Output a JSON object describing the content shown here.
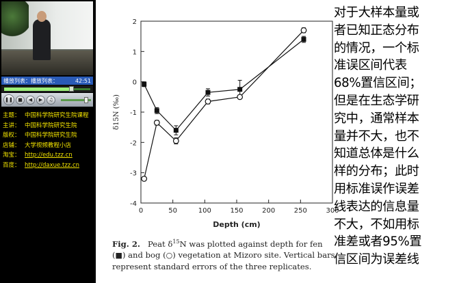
{
  "player": {
    "playlist_label": "播放列表：播放列表：",
    "time": "42:51",
    "progress": 0.78,
    "volume": 0.85,
    "icons": {
      "pause": "pause-icon",
      "stop": "stop-icon",
      "prev": "prev-icon",
      "next": "next-icon",
      "mute": "speaker-icon"
    }
  },
  "info": [
    {
      "key": "主题：",
      "value": "中国科学院研究生院课程"
    },
    {
      "key": "主讲：",
      "value": "中国科学院研究生院"
    },
    {
      "key": "版权：",
      "value": "中国科学院研究生院"
    },
    {
      "key": "店铺：",
      "value": "大学视频教程小店"
    },
    {
      "key": "淘宝：",
      "value": "http://edu.tzz.cn",
      "link": true
    },
    {
      "key": "百度：",
      "value": "http://daxue.tzz.cn",
      "link": true
    }
  ],
  "chart_data": {
    "type": "line",
    "xlabel": "Depth (cm)",
    "ylabel": "δ15N (‰)",
    "xlim": [
      0,
      300
    ],
    "ylim": [
      -4,
      2
    ],
    "xticks": [
      0,
      50,
      100,
      150,
      200,
      250,
      300
    ],
    "yticks": [
      -4,
      -3,
      -2,
      -1,
      0,
      1,
      2
    ],
    "grid": false,
    "series": [
      {
        "name": "fen",
        "marker": "filled-square",
        "x": [
          5,
          25,
          55,
          105,
          155,
          255
        ],
        "y": [
          -0.08,
          -0.95,
          -1.6,
          -0.35,
          -0.25,
          1.4
        ],
        "err": [
          0.08,
          0.1,
          0.15,
          0.12,
          0.3,
          0.1
        ]
      },
      {
        "name": "bog",
        "marker": "open-circle",
        "x": [
          5,
          25,
          55,
          105,
          155,
          255
        ],
        "y": [
          -3.2,
          -1.35,
          -1.95,
          -0.65,
          -0.5,
          1.7
        ],
        "err": [
          0.05,
          0.08,
          0.1,
          0.08,
          0.06,
          0.08
        ]
      }
    ]
  },
  "caption": {
    "fig": "Fig. 2.",
    "line1_a": "Peat δ",
    "sup": "15",
    "line1_b": "N was plotted against depth for fen",
    "sym_fen": "■",
    "line2_a": ") and bog (",
    "sym_bog": "○",
    "line2_b": ") vegetation at Mizoro site. Vertical bars",
    "line3": "represent standard errors of the three replicates."
  },
  "notes": "对于大样本量或\n者已知正态分布\n的情况，一个标\n准误区间代表\n68%置信区间；\n但是在生态学研\n究中，通常样本\n量并不大，也不\n知道总体是什么\n样的分布；此时\n用标准误作误差\n线表达的信息量\n不大，不如用标\n准差或者95%置\n信区间为误差线"
}
